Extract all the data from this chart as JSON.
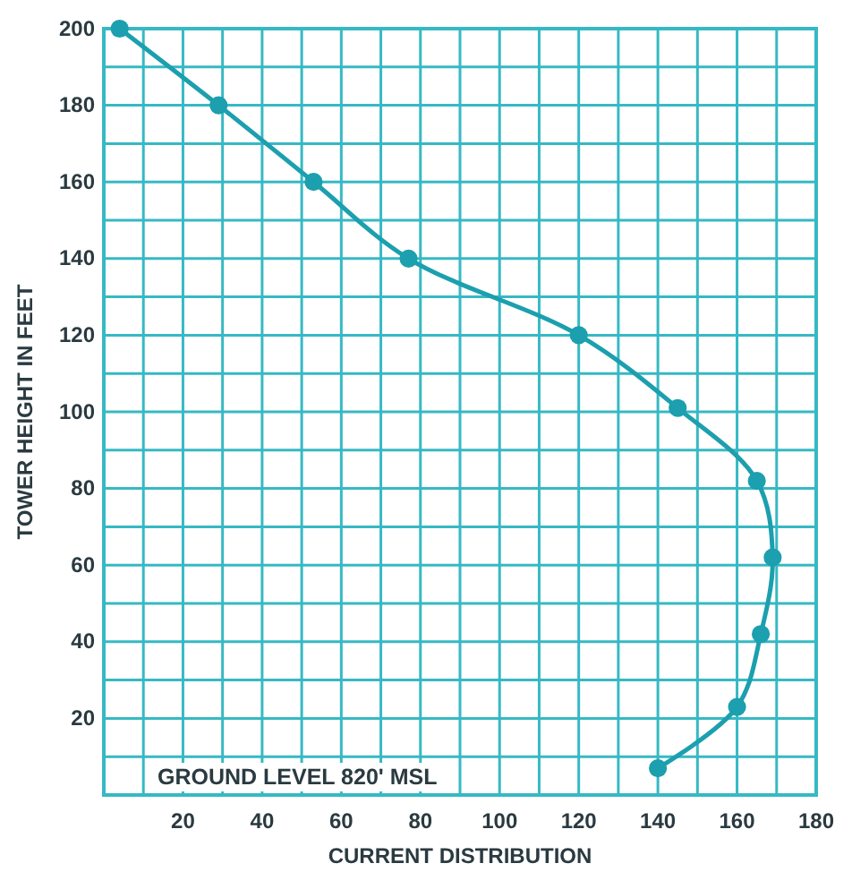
{
  "chart_data": {
    "type": "line",
    "xlabel": "CURRENT DISTRIBUTION",
    "ylabel": "TOWER HEIGHT IN FEET",
    "xlim": [
      0,
      180
    ],
    "ylim": [
      0,
      200
    ],
    "xticks": [
      {
        "value": 10,
        "label": null
      },
      20,
      {
        "value": 30,
        "label": null
      },
      40,
      {
        "value": 50,
        "label": null
      },
      60,
      {
        "value": 70,
        "label": null
      },
      80,
      {
        "value": 90,
        "label": null
      },
      100,
      {
        "value": 110,
        "label": null
      },
      120,
      {
        "value": 130,
        "label": null
      },
      140,
      {
        "value": 150,
        "label": null
      },
      160,
      {
        "value": 170,
        "label": null
      },
      180
    ],
    "yticks": [
      {
        "value": 10,
        "label": null
      },
      20,
      {
        "value": 30,
        "label": null
      },
      40,
      {
        "value": 50,
        "label": null
      },
      60,
      {
        "value": 70,
        "label": null
      },
      80,
      {
        "value": 90,
        "label": null
      },
      100,
      {
        "value": 110,
        "label": null
      },
      120,
      {
        "value": 130,
        "label": null
      },
      140,
      {
        "value": 150,
        "label": null
      },
      160,
      {
        "value": 170,
        "label": null
      },
      180,
      {
        "value": 190,
        "label": null
      },
      200
    ],
    "grid": true,
    "marker": "circle",
    "line_style": "solid",
    "annotations": [
      "GROUND LEVEL 820' MSL"
    ],
    "series": [
      {
        "color": "#1c9fae",
        "x": [
          4,
          29,
          53,
          77,
          120,
          145,
          165,
          169,
          166,
          160,
          140
        ],
        "values": [
          200,
          180,
          160,
          140,
          120,
          101,
          82,
          62,
          42,
          23,
          7
        ]
      }
    ]
  }
}
